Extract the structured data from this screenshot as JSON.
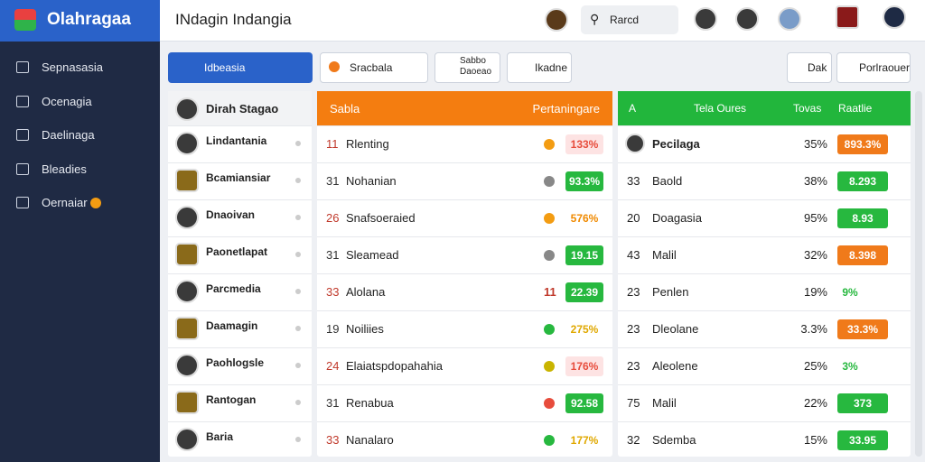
{
  "app": {
    "brand": "Olahragaa",
    "title": "INdagin Indangia",
    "search": "Rarcd"
  },
  "sidebar": {
    "items": [
      "Sepnasasia",
      "Ocenagia",
      "Daelinaga",
      "Bleadies",
      "Oernaiar"
    ]
  },
  "toolbar": {
    "primary": "Idbeasia",
    "dropdown": "Sracbala",
    "stacked": [
      "Sabbo",
      "Daoeao"
    ],
    "tab": "Ikadne",
    "right": [
      "Dak",
      "Porlraouer"
    ]
  },
  "players": {
    "header": "Dirah Stagao",
    "rows": [
      "Lindantania",
      "Bcamiansiar",
      "Dnaoivan",
      "Paonetlapat",
      "Parcmedia",
      "Daamagin",
      "Paohlogsle",
      "Rantogan",
      "Baria"
    ]
  },
  "matches": {
    "header": [
      "Sabla",
      "Pertaningare"
    ],
    "rows": [
      {
        "num": "11",
        "name": "Rlenting",
        "icon": "#f39c12",
        "value": "133%",
        "color": "#e74c3c",
        "badge": false
      },
      {
        "num": "31",
        "name": "Nohanian",
        "icon": "#888888",
        "value": "93.3%",
        "color": "#27b83f",
        "badge": true
      },
      {
        "num": "26",
        "name": "Snafsoeraied",
        "icon": "#f39c12",
        "value": "576%",
        "color": "#f08a00",
        "badge": false
      },
      {
        "num": "31",
        "name": "Sleamead",
        "icon": "#888888",
        "value": "19.15",
        "color": "#27b83f",
        "badge": true
      },
      {
        "num": "33",
        "name": "Alolana",
        "mark": "11",
        "value": "22.39",
        "color": "#27b83f",
        "badge": true
      },
      {
        "num": "19",
        "name": "Noiliies",
        "icon": "#27b83f",
        "value": "275%",
        "color": "#e0a800",
        "badge": false
      },
      {
        "num": "24",
        "name": "Elaiatspdopahahia",
        "icon": "#c9b400",
        "value": "176%",
        "color": "#e74c3c",
        "badge": false
      },
      {
        "num": "31",
        "name": "Renabua",
        "icon": "#e74c3c",
        "value": "92.58",
        "color": "#27b83f",
        "badge": true
      },
      {
        "num": "33",
        "name": "Nanalaro",
        "icon": "#27b83f",
        "value": "177%",
        "color": "#e0a800",
        "badge": false
      }
    ]
  },
  "ranking": {
    "header": [
      "A",
      "Tela Oures",
      "Tovas",
      "Raatlie"
    ],
    "rows": [
      {
        "name": "Pecilaga",
        "pct": "35%",
        "value": "893.3%",
        "color": "#f07a1a",
        "badge": true
      },
      {
        "num": "33",
        "name": "Baold",
        "pct": "38%",
        "value": "8.293",
        "color": "#27b83f",
        "badge": true
      },
      {
        "num": "20",
        "name": "Doagasia",
        "pct": "95%",
        "value": "8.93",
        "color": "#27b83f",
        "badge": true
      },
      {
        "num": "43",
        "name": "Malil",
        "pct": "32%",
        "value": "8.398",
        "color": "#f07a1a",
        "badge": true
      },
      {
        "num": "23",
        "name": "Penlen",
        "pct": "19%",
        "value": "9%",
        "color": "#27b83f",
        "badge": false
      },
      {
        "num": "23",
        "name": "Dleolane",
        "pct": "3.3%",
        "value": "33.3%",
        "color": "#f07a1a",
        "badge": true
      },
      {
        "num": "23",
        "name": "Aleolene",
        "pct": "25%",
        "value": "3%",
        "color": "#27b83f",
        "badge": false
      },
      {
        "num": "75",
        "name": "Malil",
        "pct": "22%",
        "value": "373",
        "color": "#27b83f",
        "badge": true
      },
      {
        "num": "32",
        "name": "Sdemba",
        "pct": "15%",
        "value": "33.95",
        "color": "#27b83f",
        "badge": true
      }
    ]
  }
}
